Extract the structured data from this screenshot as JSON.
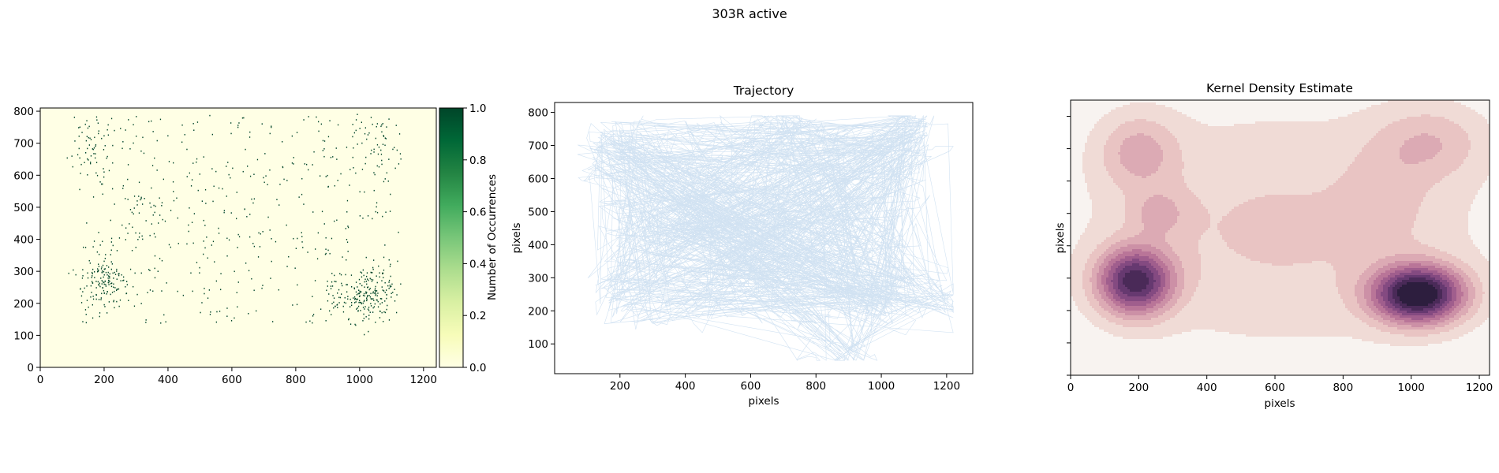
{
  "figure": {
    "suptitle": "303R active"
  },
  "chart_data": [
    {
      "type": "heatmap",
      "title": "",
      "xlabel": "",
      "ylabel": "",
      "xlim": [
        0,
        1240
      ],
      "ylim": [
        0,
        810
      ],
      "xticks": [
        0,
        200,
        400,
        600,
        800,
        1000,
        1200
      ],
      "yticks": [
        0,
        100,
        200,
        300,
        400,
        500,
        600,
        700,
        800
      ],
      "colorbar": {
        "label": "Number of Occurrences",
        "range": [
          0.0,
          1.0
        ],
        "ticks": [
          "0.0",
          "0.2",
          "0.4",
          "0.6",
          "0.8",
          "1.0"
        ],
        "colormap": [
          "#ffffe5",
          "#f7fcb9",
          "#d9f0a3",
          "#addd8e",
          "#78c679",
          "#41ab5d",
          "#238443",
          "#006837",
          "#004529"
        ]
      },
      "background_color": "#ffffe5",
      "occupancy_color": "#004529",
      "point_count": 950,
      "clusters": [
        {
          "x": 190,
          "y": 270,
          "sx": 35,
          "sy": 45,
          "weight": 0.17
        },
        {
          "x": 1040,
          "y": 230,
          "sx": 35,
          "sy": 40,
          "weight": 0.15
        },
        {
          "x": 950,
          "y": 220,
          "sx": 40,
          "sy": 35,
          "weight": 0.06
        },
        {
          "x": 170,
          "y": 700,
          "sx": 45,
          "sy": 50,
          "weight": 0.07
        },
        {
          "x": 1050,
          "y": 700,
          "sx": 60,
          "sy": 50,
          "weight": 0.06
        },
        {
          "x": 320,
          "y": 470,
          "sx": 50,
          "sy": 50,
          "weight": 0.04
        },
        {
          "x": 650,
          "y": 480,
          "sx": 460,
          "sy": 260,
          "weight": 0.45
        }
      ]
    },
    {
      "type": "line",
      "title": "Trajectory",
      "xlabel": "pixels",
      "ylabel": "pixels",
      "xlim": [
        0,
        1280
      ],
      "ylim": [
        10,
        830
      ],
      "xticks": [
        200,
        400,
        600,
        800,
        1000,
        1200
      ],
      "yticks": [
        100,
        200,
        300,
        400,
        500,
        600,
        700,
        800
      ],
      "line_color": "#c6dbef",
      "segment_count": 1400,
      "waypoints": [
        {
          "x": 190,
          "y": 270
        },
        {
          "x": 1040,
          "y": 230
        },
        {
          "x": 950,
          "y": 220
        },
        {
          "x": 170,
          "y": 700
        },
        {
          "x": 1050,
          "y": 700
        },
        {
          "x": 320,
          "y": 470
        },
        {
          "x": 130,
          "y": 640
        },
        {
          "x": 700,
          "y": 760
        },
        {
          "x": 600,
          "y": 300
        },
        {
          "x": 1110,
          "y": 760
        },
        {
          "x": 1200,
          "y": 230
        },
        {
          "x": 900,
          "y": 50
        }
      ],
      "x_extent": [
        70,
        1220
      ],
      "y_extent": [
        50,
        790
      ]
    },
    {
      "type": "kde",
      "title": "Kernel Density Estimate",
      "xlabel": "pixels",
      "ylabel": "pixels",
      "xlim": [
        0,
        1230
      ],
      "ylim": [
        0,
        850
      ],
      "xticks": [
        0,
        200,
        400,
        600,
        800,
        1000,
        1200
      ],
      "y_tick_labels_shown": false,
      "colormap": [
        "#f7f0ec",
        "#f0dbd6",
        "#e9c4c3",
        "#dcaab4",
        "#cc90a6",
        "#b97598",
        "#a05e8d",
        "#844a81",
        "#663970",
        "#4a2a58",
        "#2d1e3e"
      ],
      "background_color": "#f8f3f0",
      "levels": 10,
      "components": [
        {
          "x": 190,
          "y": 290,
          "sx": 75,
          "sy": 70,
          "weight": 1.0
        },
        {
          "x": 1020,
          "y": 250,
          "sx": 90,
          "sy": 60,
          "weight": 1.25
        },
        {
          "x": 200,
          "y": 690,
          "sx": 80,
          "sy": 80,
          "weight": 0.28
        },
        {
          "x": 1060,
          "y": 720,
          "sx": 110,
          "sy": 80,
          "weight": 0.22
        },
        {
          "x": 260,
          "y": 500,
          "sx": 60,
          "sy": 50,
          "weight": 0.2
        },
        {
          "x": 620,
          "y": 450,
          "sx": 400,
          "sy": 250,
          "weight": 0.19
        },
        {
          "x": 930,
          "y": 560,
          "sx": 90,
          "sy": 120,
          "weight": 0.1
        }
      ]
    }
  ]
}
